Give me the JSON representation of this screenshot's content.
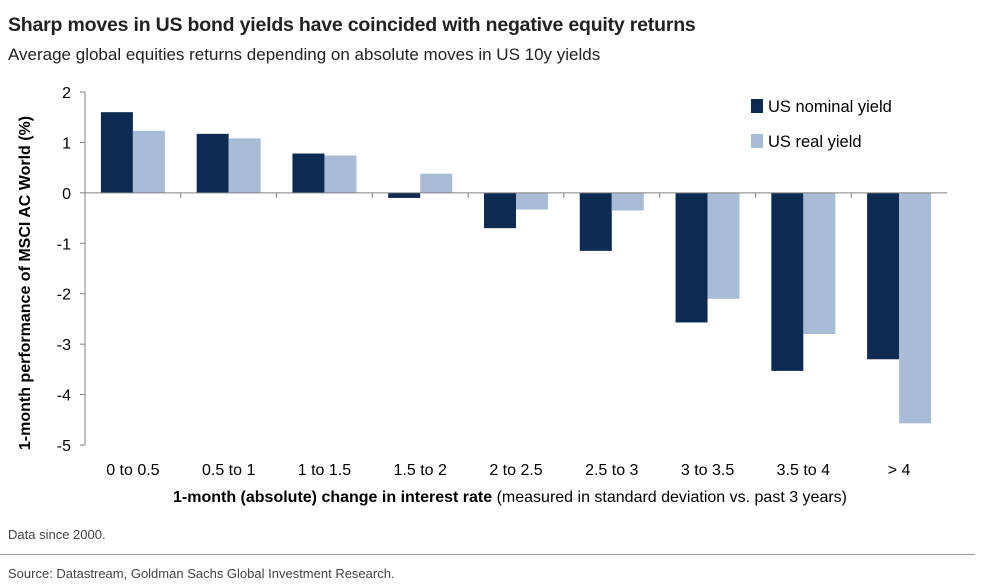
{
  "header": {
    "title": "Sharp moves in US bond yields have coincided with negative equity returns",
    "subtitle": "Average global equities returns depending on absolute moves in US 10y yields"
  },
  "footer": {
    "note": "Data since 2000.",
    "source": "Source: Datastream, Goldman Sachs Global Investment Research."
  },
  "colors": {
    "nominal": "#0c2a52",
    "real": "#a9bcd6",
    "axis": "#808080"
  },
  "chart_data": {
    "type": "bar",
    "title": "Sharp moves in US bond yields have coincided with negative equity returns",
    "subtitle": "Average global equities returns depending on absolute moves in US 10y yields",
    "categories": [
      "0 to 0.5",
      "0.5 to 1",
      "1 to 1.5",
      "1.5 to 2",
      "2 to 2.5",
      "2.5 to 3",
      "3 to 3.5",
      "3.5 to 4",
      "> 4"
    ],
    "series": [
      {
        "name": "US nominal yield",
        "values": [
          1.6,
          1.17,
          0.78,
          -0.1,
          -0.7,
          -1.15,
          -2.57,
          -3.53,
          -3.3
        ]
      },
      {
        "name": "US real yield",
        "values": [
          1.23,
          1.08,
          0.74,
          0.38,
          -0.33,
          -0.35,
          -2.1,
          -2.8,
          -4.57
        ]
      }
    ],
    "ylabel": "1-month performance of MSCI AC World (%)",
    "xlabel_bold": "1-month (absolute) change in interest rate",
    "xlabel_rest": " (measured in standard deviation vs. past 3 years)",
    "ylim": [
      -5,
      2
    ],
    "yticks": [
      2,
      1,
      0,
      -1,
      -2,
      -3,
      -4,
      -5
    ],
    "grid": false,
    "legend": "top-right"
  }
}
